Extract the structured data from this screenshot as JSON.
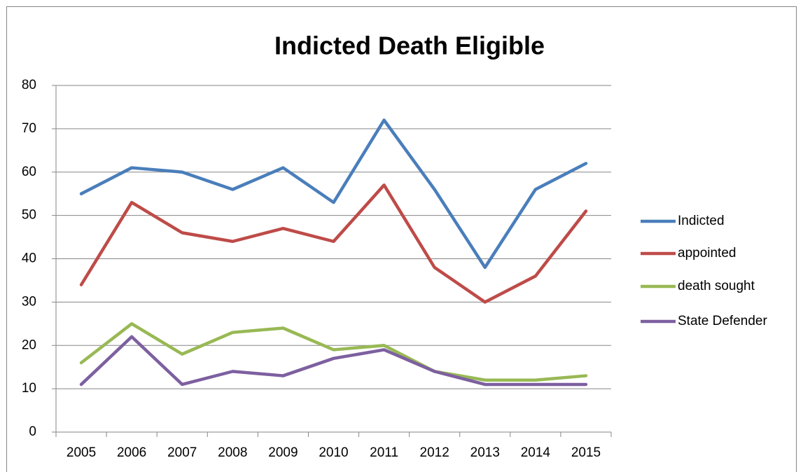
{
  "chart_data": {
    "type": "line",
    "title": "Indicted Death Eligible",
    "categories": [
      "2005",
      "2006",
      "2007",
      "2008",
      "2009",
      "2010",
      "2011",
      "2012",
      "2013",
      "2014",
      "2015"
    ],
    "series": [
      {
        "name": "Indicted",
        "color": "#4a7ebb",
        "values": [
          55,
          61,
          60,
          56,
          61,
          53,
          72,
          56,
          38,
          56,
          62
        ]
      },
      {
        "name": "appointed",
        "color": "#be4b48",
        "values": [
          34,
          53,
          46,
          44,
          47,
          44,
          57,
          38,
          30,
          36,
          51
        ]
      },
      {
        "name": "death sought",
        "color": "#98b954",
        "values": [
          16,
          25,
          18,
          23,
          24,
          19,
          20,
          14,
          12,
          12,
          13
        ]
      },
      {
        "name": "State Defender",
        "color": "#7d60a0",
        "values": [
          11,
          22,
          11,
          14,
          13,
          17,
          19,
          14,
          11,
          11,
          11
        ]
      }
    ],
    "ylim": [
      0,
      80
    ],
    "yticks": [
      0,
      10,
      20,
      30,
      40,
      50,
      60,
      70,
      80
    ],
    "grid": true,
    "legend": "right"
  }
}
